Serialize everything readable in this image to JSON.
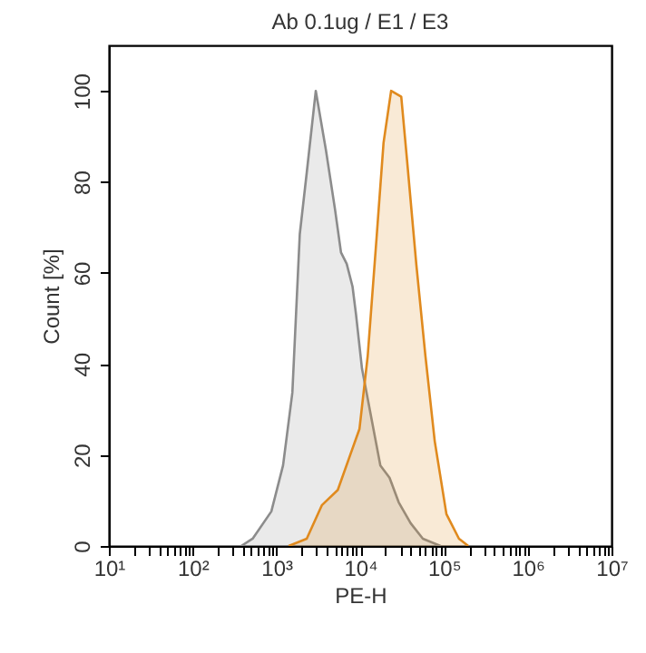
{
  "chart_data": {
    "type": "area",
    "title": "Ab 0.1ug / E1 / E3",
    "xlabel": "PE-H",
    "ylabel": "Count [%]",
    "log": "x",
    "xlim": [
      10,
      10000000
    ],
    "ylim": [
      0,
      110
    ],
    "xticks": [
      {
        "value": 10,
        "label": "10¹"
      },
      {
        "value": 100,
        "label": "10²"
      },
      {
        "value": 1000,
        "label": "10³"
      },
      {
        "value": 10000,
        "label": "10⁴"
      },
      {
        "value": 100000,
        "label": "10⁵"
      },
      {
        "value": 1000000,
        "label": "10⁶"
      },
      {
        "value": 10000000,
        "label": "10⁷"
      },
      {
        "value": 20,
        "label": null
      },
      {
        "value": 30,
        "label": null
      },
      {
        "value": 40,
        "label": null
      },
      {
        "value": 50,
        "label": null
      },
      {
        "value": 60,
        "label": null
      },
      {
        "value": 70,
        "label": null
      },
      {
        "value": 80,
        "label": null
      },
      {
        "value": 90,
        "label": null
      },
      {
        "value": 200,
        "label": null
      },
      {
        "value": 300,
        "label": null
      },
      {
        "value": 400,
        "label": null
      },
      {
        "value": 500,
        "label": null
      },
      {
        "value": 600,
        "label": null
      },
      {
        "value": 700,
        "label": null
      },
      {
        "value": 800,
        "label": null
      },
      {
        "value": 900,
        "label": null
      },
      {
        "value": 2000,
        "label": null
      },
      {
        "value": 3000,
        "label": null
      },
      {
        "value": 4000,
        "label": null
      },
      {
        "value": 5000,
        "label": null
      },
      {
        "value": 6000,
        "label": null
      },
      {
        "value": 7000,
        "label": null
      },
      {
        "value": 8000,
        "label": null
      },
      {
        "value": 9000,
        "label": null
      },
      {
        "value": 20000,
        "label": null
      },
      {
        "value": 30000,
        "label": null
      },
      {
        "value": 40000,
        "label": null
      },
      {
        "value": 50000,
        "label": null
      },
      {
        "value": 60000,
        "label": null
      },
      {
        "value": 70000,
        "label": null
      },
      {
        "value": 80000,
        "label": null
      },
      {
        "value": 90000,
        "label": null
      },
      {
        "value": 200000,
        "label": null
      },
      {
        "value": 300000,
        "label": null
      },
      {
        "value": 400000,
        "label": null
      },
      {
        "value": 500000,
        "label": null
      },
      {
        "value": 600000,
        "label": null
      },
      {
        "value": 700000,
        "label": null
      },
      {
        "value": 800000,
        "label": null
      },
      {
        "value": 900000,
        "label": null
      },
      {
        "value": 2000000,
        "label": null
      },
      {
        "value": 3000000,
        "label": null
      },
      {
        "value": 4000000,
        "label": null
      },
      {
        "value": 5000000,
        "label": null
      },
      {
        "value": 6000000,
        "label": null
      },
      {
        "value": 7000000,
        "label": null
      },
      {
        "value": 8000000,
        "label": null
      },
      {
        "value": 9000000,
        "label": null
      }
    ],
    "yticks": [
      0,
      20,
      40,
      60,
      80,
      100
    ],
    "grid": false,
    "series": [
      {
        "color": "#8c8c8c",
        "x": [
          380,
          520,
          870,
          1200,
          1550,
          1900,
          2300,
          2950,
          3900,
          5000,
          5900,
          6900,
          8100,
          8900,
          10500,
          13500,
          17400,
          22400,
          28800,
          40000,
          56000,
          91000
        ],
        "values": [
          0,
          1.6,
          7.6,
          17.7,
          33.7,
          68.5,
          82,
          100,
          87,
          74,
          64.5,
          62,
          57,
          51,
          39,
          28.4,
          17.7,
          15,
          9.6,
          5,
          1.6,
          0
        ]
      },
      {
        "color": "#e08a1e",
        "x": [
          1400,
          2300,
          3500,
          5400,
          7600,
          9800,
          12300,
          15800,
          19000,
          23400,
          30900,
          36300,
          46800,
          60000,
          77600,
          107000,
          151000,
          195000
        ],
        "values": [
          0,
          1.6,
          9,
          12.3,
          20,
          25.7,
          41.8,
          68.5,
          88.6,
          100,
          98.7,
          84.6,
          61.8,
          41.8,
          23,
          7,
          1.6,
          0
        ]
      }
    ]
  }
}
